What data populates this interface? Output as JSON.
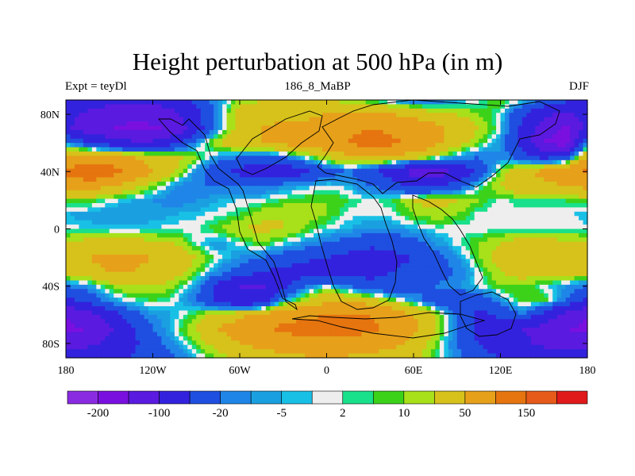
{
  "chart_data": {
    "type": "heatmap",
    "title": "Height perturbation at 500 hPa (in m)",
    "left_string": "Expt = teyDl",
    "center_string": "186_8_MaBP",
    "right_string": "DJF",
    "xlim": [
      -180,
      180
    ],
    "ylim": [
      -90,
      90
    ],
    "x_ticks": [
      {
        "value": -180,
        "label": "180"
      },
      {
        "value": -120,
        "label": "120W"
      },
      {
        "value": -60,
        "label": "60W"
      },
      {
        "value": 0,
        "label": "0"
      },
      {
        "value": 60,
        "label": "60E"
      },
      {
        "value": 120,
        "label": "120E"
      },
      {
        "value": 180,
        "label": "180"
      }
    ],
    "y_ticks": [
      {
        "value": 80,
        "label": "80N"
      },
      {
        "value": 40,
        "label": "40N"
      },
      {
        "value": 0,
        "label": "0"
      },
      {
        "value": -40,
        "label": "40S"
      },
      {
        "value": -80,
        "label": "80S"
      }
    ],
    "levels": [
      -200,
      -150,
      -100,
      -50,
      -20,
      -10,
      -5,
      -2,
      2,
      5,
      10,
      20,
      50,
      100,
      150,
      200
    ],
    "colors": [
      "#8a2be2",
      "#7a10e0",
      "#5a1ae0",
      "#3322dd",
      "#1f4fe0",
      "#1f86e8",
      "#1aa0e0",
      "#19c0e6",
      "#eeeeee",
      "#19e08a",
      "#3cd21a",
      "#a8e01a",
      "#d6c21a",
      "#e6a01a",
      "#e6740f",
      "#e65a1a",
      "#e01a1a"
    ],
    "colorbar_labels": [
      {
        "level": -200,
        "label": "-200"
      },
      {
        "level": -100,
        "label": "-100"
      },
      {
        "level": -20,
        "label": "-20"
      },
      {
        "level": -5,
        "label": "-5"
      },
      {
        "level": 2,
        "label": "2"
      },
      {
        "level": 10,
        "label": "10"
      },
      {
        "level": 50,
        "label": "50"
      },
      {
        "level": 150,
        "label": "150"
      }
    ],
    "field": {
      "lon": [
        -180,
        -165,
        -150,
        -135,
        -120,
        -105,
        -90,
        -75,
        -60,
        -45,
        -30,
        -15,
        0,
        15,
        30,
        45,
        60,
        75,
        90,
        105,
        120,
        135,
        150,
        165,
        180
      ],
      "lat": [
        90,
        80,
        70,
        60,
        50,
        40,
        30,
        20,
        10,
        0,
        -10,
        -20,
        -30,
        -40,
        -50,
        -60,
        -70,
        -80,
        -90
      ],
      "values": [
        [
          -60,
          -70,
          -80,
          -90,
          -90,
          -70,
          -40,
          -10,
          10,
          20,
          30,
          30,
          20,
          10,
          0,
          -10,
          -20,
          -20,
          -10,
          0,
          10,
          0,
          -20,
          -40,
          -60
        ],
        [
          -80,
          -110,
          -130,
          -140,
          -130,
          -110,
          -60,
          -10,
          30,
          40,
          40,
          40,
          50,
          60,
          60,
          50,
          40,
          30,
          20,
          10,
          0,
          -40,
          -90,
          -110,
          -80
        ],
        [
          -90,
          -130,
          -150,
          -160,
          -160,
          -140,
          -70,
          -10,
          30,
          50,
          60,
          60,
          70,
          90,
          100,
          90,
          80,
          60,
          40,
          20,
          0,
          -60,
          -130,
          -160,
          -90
        ],
        [
          -10,
          -40,
          -70,
          -90,
          -90,
          -60,
          -10,
          20,
          40,
          50,
          60,
          70,
          80,
          100,
          120,
          110,
          90,
          60,
          30,
          10,
          -10,
          -60,
          -150,
          -180,
          -10
        ],
        [
          50,
          60,
          60,
          50,
          40,
          30,
          10,
          -10,
          -20,
          -30,
          -20,
          0,
          20,
          40,
          50,
          40,
          30,
          10,
          -10,
          -20,
          -10,
          -30,
          -60,
          -40,
          50
        ],
        [
          110,
          150,
          130,
          90,
          50,
          20,
          -10,
          -40,
          -60,
          -80,
          -80,
          -60,
          -30,
          -20,
          -40,
          -70,
          -120,
          -130,
          -90,
          -40,
          10,
          40,
          60,
          80,
          110
        ],
        [
          60,
          70,
          50,
          30,
          10,
          -10,
          -20,
          -20,
          -20,
          -20,
          -10,
          -5,
          0,
          -5,
          -20,
          -30,
          -60,
          -60,
          -30,
          0,
          20,
          40,
          40,
          50,
          60
        ],
        [
          10,
          10,
          0,
          -5,
          -10,
          -15,
          -10,
          -5,
          -2,
          0,
          5,
          8,
          10,
          5,
          0,
          5,
          20,
          30,
          20,
          10,
          0,
          5,
          5,
          5,
          10
        ],
        [
          -5,
          -8,
          -10,
          -10,
          -8,
          -5,
          -3,
          0,
          5,
          15,
          20,
          15,
          10,
          0,
          -2,
          0,
          10,
          15,
          10,
          0,
          -2,
          0,
          0,
          0,
          -5
        ],
        [
          0,
          -2,
          -3,
          -3,
          -2,
          0,
          0,
          10,
          20,
          25,
          20,
          10,
          0,
          -5,
          -10,
          -10,
          -5,
          0,
          0,
          0,
          0,
          0,
          0,
          0,
          0
        ],
        [
          20,
          30,
          30,
          30,
          25,
          20,
          0,
          -10,
          0,
          10,
          0,
          -10,
          -20,
          -30,
          -40,
          -40,
          -30,
          -10,
          0,
          10,
          20,
          30,
          30,
          25,
          20
        ],
        [
          40,
          50,
          60,
          60,
          50,
          40,
          20,
          0,
          -10,
          -20,
          -30,
          -40,
          -50,
          -60,
          -70,
          -60,
          -50,
          -30,
          -10,
          10,
          30,
          40,
          50,
          50,
          40
        ],
        [
          30,
          40,
          50,
          50,
          40,
          30,
          10,
          -10,
          -30,
          -50,
          -60,
          -70,
          -80,
          -70,
          -60,
          -50,
          -40,
          -30,
          -20,
          0,
          20,
          30,
          30,
          30,
          30
        ],
        [
          -20,
          -10,
          10,
          20,
          20,
          10,
          -10,
          -60,
          -100,
          -110,
          -60,
          -20,
          0,
          -20,
          -40,
          -40,
          -30,
          -20,
          -10,
          0,
          10,
          10,
          0,
          -10,
          -20
        ],
        [
          -60,
          -40,
          -10,
          0,
          5,
          0,
          -20,
          -60,
          -90,
          -80,
          -10,
          20,
          40,
          40,
          30,
          10,
          -10,
          -30,
          -50,
          -40,
          -10,
          10,
          10,
          -20,
          -60
        ],
        [
          -150,
          -120,
          -70,
          -30,
          -10,
          -5,
          10,
          30,
          40,
          60,
          80,
          90,
          100,
          110,
          100,
          80,
          50,
          20,
          -20,
          -60,
          -40,
          -20,
          -60,
          -120,
          -150
        ],
        [
          -160,
          -150,
          -110,
          -60,
          -20,
          0,
          20,
          50,
          70,
          90,
          110,
          120,
          120,
          120,
          110,
          90,
          60,
          20,
          -20,
          -60,
          -80,
          -100,
          -120,
          -150,
          -160
        ],
        [
          -120,
          -110,
          -90,
          -60,
          -30,
          -10,
          10,
          30,
          50,
          60,
          70,
          80,
          80,
          80,
          70,
          60,
          40,
          10,
          -20,
          -50,
          -70,
          -90,
          -110,
          -120,
          -120
        ],
        [
          -80,
          -75,
          -65,
          -50,
          -35,
          -20,
          -5,
          10,
          25,
          35,
          40,
          45,
          45,
          45,
          40,
          35,
          25,
          5,
          -15,
          -35,
          -50,
          -60,
          -70,
          -80,
          -80
        ]
      ]
    }
  }
}
